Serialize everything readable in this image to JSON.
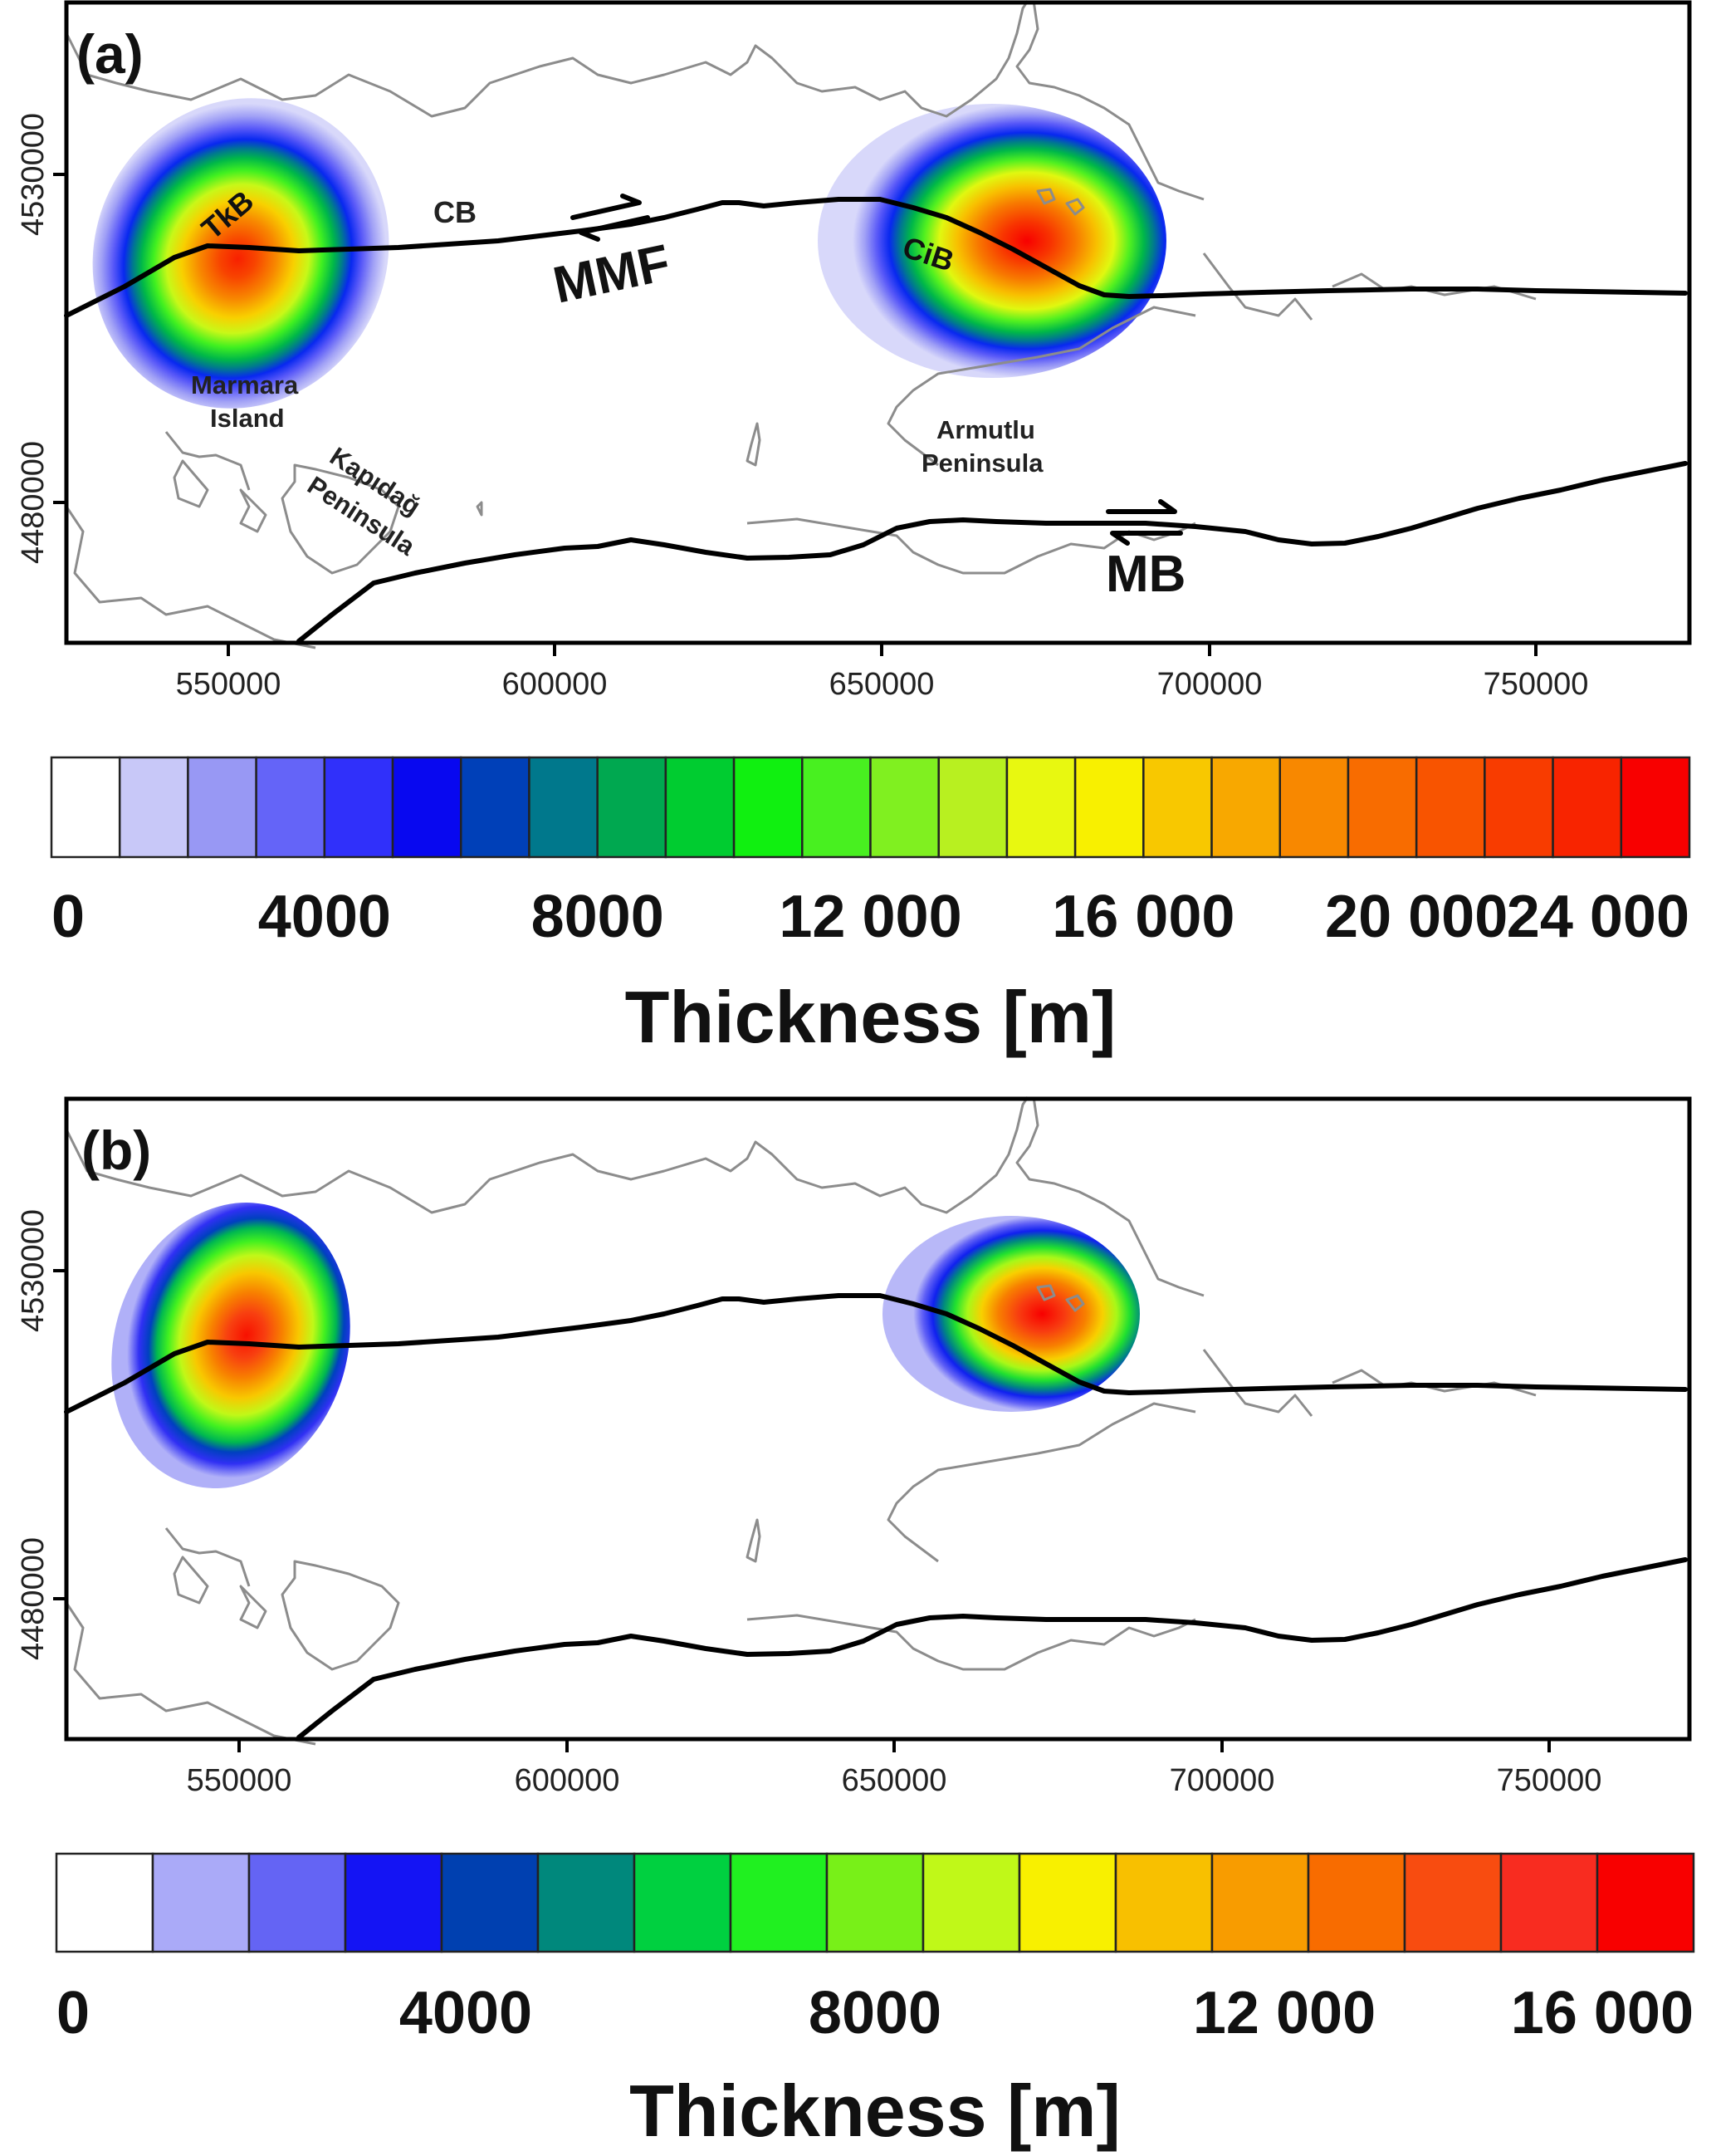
{
  "panels": [
    {
      "label": "(a)",
      "x_ticks": [
        550000,
        600000,
        650000,
        700000,
        750000
      ],
      "x_tick_labels": [
        "550000",
        "600000",
        "650000",
        "700000",
        "750000"
      ],
      "y_ticks": [
        4530000,
        4480000
      ],
      "y_tick_labels": [
        "4530000",
        "4480000"
      ],
      "places": [
        "Marmara",
        "Island",
        "Kapıdağ",
        "Peninsula",
        "Armutlu",
        "Peninsula"
      ],
      "basins": [
        "TkB",
        "CiB"
      ],
      "faults": [
        "CB",
        "MMF",
        "MB"
      ],
      "colorbar": {
        "colors": [
          "#ffffff",
          "#c8c8f8",
          "#9898f4",
          "#6464f8",
          "#3030fa",
          "#0808f0",
          "#0040b8",
          "#00788c",
          "#00a850",
          "#00cc30",
          "#10f010",
          "#48f020",
          "#80f020",
          "#b8f020",
          "#e8f810",
          "#f8f000",
          "#f8c800",
          "#f8a800",
          "#f88800",
          "#f86c00",
          "#f85400",
          "#f83c00",
          "#f82400",
          "#f80000"
        ],
        "tick_labels": [
          "0",
          "4000",
          "8000",
          "12 000",
          "16 000",
          "20 000",
          "24 000"
        ],
        "title": "Thickness [m]"
      }
    },
    {
      "label": "(b)",
      "x_ticks": [
        550000,
        600000,
        650000,
        700000,
        750000
      ],
      "x_tick_labels": [
        "550000",
        "600000",
        "650000",
        "700000",
        "750000"
      ],
      "y_ticks": [
        4530000,
        4480000
      ],
      "y_tick_labels": [
        "4530000",
        "4480000"
      ],
      "colorbar": {
        "colors": [
          "#ffffff",
          "#aaaaf8",
          "#6464f4",
          "#1414f4",
          "#0040b0",
          "#00887c",
          "#00d040",
          "#20f020",
          "#78f018",
          "#c0f818",
          "#f8f000",
          "#f8c000",
          "#f89c00",
          "#f86c00",
          "#f84c10",
          "#f82c20",
          "#f80000"
        ],
        "tick_labels": [
          "0",
          "4000",
          "8000",
          "12 000",
          "16 000"
        ],
        "title": "Thickness [m]"
      }
    }
  ]
}
